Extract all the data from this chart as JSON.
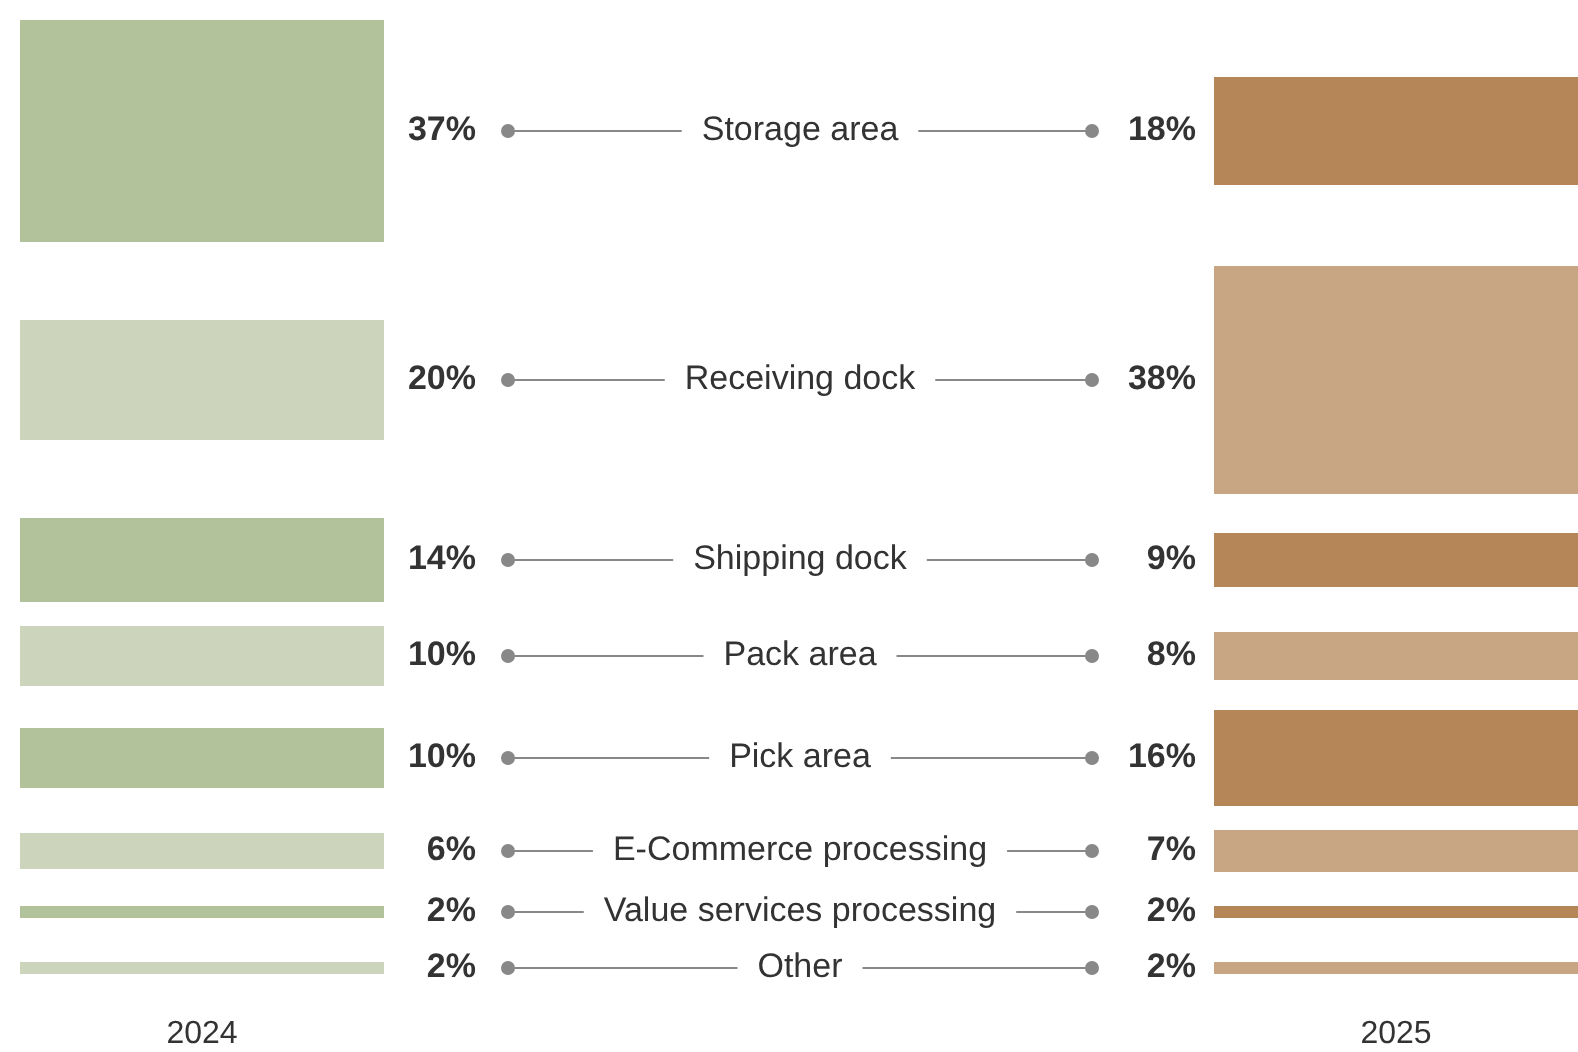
{
  "chart_data": {
    "type": "other",
    "categories": [
      "Storage area",
      "Receiving dock",
      "Shipping dock",
      "Pack area",
      "Pick area",
      "E-Commerce processing",
      "Value services processing",
      "Other"
    ],
    "series": [
      {
        "name": "2024",
        "values": [
          37,
          20,
          14,
          10,
          10,
          6,
          2,
          2
        ],
        "value_labels": [
          "37%",
          "20%",
          "14%",
          "10%",
          "10%",
          "6%",
          "2%",
          "2%"
        ],
        "colors": [
          "#b2c29b",
          "#ccd5bc",
          "#b2c29b",
          "#ccd5bc",
          "#b2c29b",
          "#ccd5bc",
          "#b2c29b",
          "#ccd5bc"
        ]
      },
      {
        "name": "2025",
        "values": [
          18,
          38,
          9,
          8,
          16,
          7,
          2,
          2
        ],
        "value_labels": [
          "18%",
          "38%",
          "9%",
          "8%",
          "16%",
          "7%",
          "2%",
          "2%"
        ],
        "colors": [
          "#b58658",
          "#c8a684",
          "#b58658",
          "#c8a684",
          "#b58658",
          "#c8a684",
          "#b58658",
          "#c8a684"
        ]
      }
    ]
  }
}
